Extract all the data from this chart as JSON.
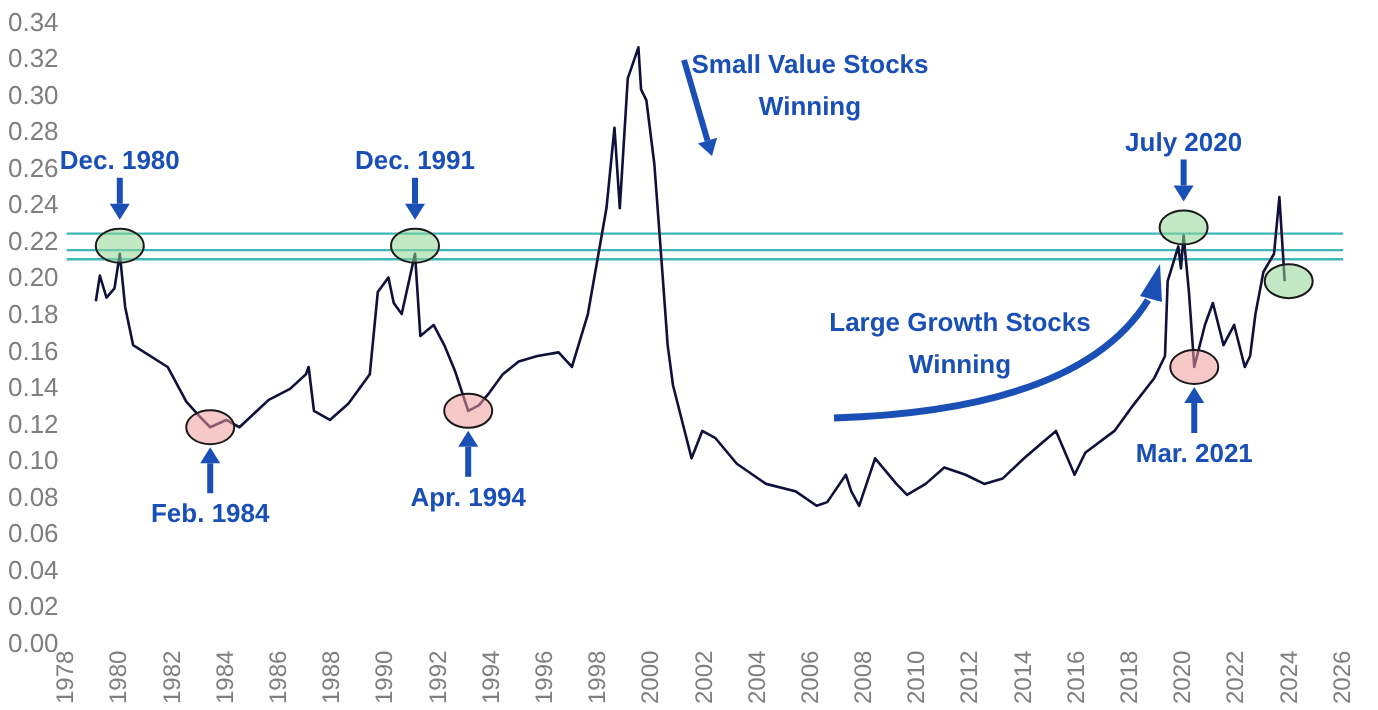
{
  "chart_data": {
    "type": "line",
    "x": [
      1979.1,
      1979.25,
      1979.5,
      1979.8,
      1980.0,
      1980.2,
      1980.5,
      1981.8,
      1982.5,
      1983.0,
      1983.4,
      1984.0,
      1984.5,
      1985.6,
      1986.4,
      1987.0,
      1987.1,
      1987.3,
      1987.9,
      1988.6,
      1989.4,
      1989.7,
      1990.1,
      1990.3,
      1990.6,
      1991.1,
      1991.3,
      1991.8,
      1992.2,
      1992.6,
      1993.1,
      1993.5,
      1993.9,
      1994.4,
      1995.0,
      1995.7,
      1996.5,
      1997.0,
      1997.6,
      1998.3,
      1998.6,
      1998.8,
      1999.1,
      1999.5,
      1999.6,
      1999.8,
      2000.1,
      2000.4,
      2000.6,
      2000.8,
      2001.5,
      2001.9,
      2002.4,
      2003.2,
      2004.3,
      2005.4,
      2006.2,
      2006.6,
      2007.3,
      2007.5,
      2007.8,
      2008.4,
      2009.2,
      2009.6,
      2010.3,
      2011.0,
      2011.8,
      2012.5,
      2013.2,
      2014.0,
      2015.2,
      2015.9,
      2016.3,
      2017.4,
      2018.1,
      2018.9,
      2019.3,
      2019.4,
      2019.8,
      2019.9,
      2020.0,
      2020.2,
      2020.4,
      2020.8,
      2021.1,
      2021.5,
      2021.9,
      2022.3,
      2022.5,
      2022.7,
      2023.0,
      2023.4,
      2023.6,
      2023.8
    ],
    "series": [
      {
        "color": "#10103c",
        "values": [
          0.188,
          0.202,
          0.19,
          0.195,
          0.214,
          0.185,
          0.164,
          0.152,
          0.133,
          0.125,
          0.119,
          0.123,
          0.119,
          0.134,
          0.14,
          0.148,
          0.152,
          0.128,
          0.123,
          0.132,
          0.148,
          0.193,
          0.201,
          0.187,
          0.181,
          0.214,
          0.169,
          0.175,
          0.164,
          0.15,
          0.128,
          0.131,
          0.138,
          0.148,
          0.155,
          0.158,
          0.16,
          0.152,
          0.181,
          0.239,
          0.283,
          0.239,
          0.31,
          0.327,
          0.304,
          0.298,
          0.263,
          0.204,
          0.164,
          0.142,
          0.102,
          0.117,
          0.113,
          0.099,
          0.088,
          0.084,
          0.076,
          0.078,
          0.093,
          0.084,
          0.076,
          0.102,
          0.088,
          0.082,
          0.088,
          0.097,
          0.093,
          0.088,
          0.091,
          0.102,
          0.117,
          0.093,
          0.105,
          0.117,
          0.131,
          0.146,
          0.158,
          0.199,
          0.218,
          0.206,
          0.224,
          0.193,
          0.152,
          0.175,
          0.187,
          0.164,
          0.175,
          0.152,
          0.158,
          0.181,
          0.204,
          0.214,
          0.245,
          0.199
        ]
      }
    ],
    "xlim": [
      1978,
      2026
    ],
    "xticks": [
      1978,
      1980,
      1982,
      1984,
      1986,
      1988,
      1990,
      1992,
      1994,
      1996,
      1998,
      2000,
      2002,
      2004,
      2006,
      2008,
      2010,
      2012,
      2014,
      2016,
      2018,
      2020,
      2022,
      2024,
      2026
    ],
    "ylim": [
      0,
      0.34
    ],
    "yticks": [
      {
        "value": 0,
        "label": "0.00"
      },
      {
        "value": 0.02,
        "label": "0.02"
      },
      {
        "value": 0.04,
        "label": "0.04"
      },
      {
        "value": 0.06,
        "label": "0.06"
      },
      {
        "value": 0.08,
        "label": "0.08"
      },
      {
        "value": 0.1,
        "label": "0.10"
      },
      {
        "value": 0.12,
        "label": "0.12"
      },
      {
        "value": 0.14,
        "label": "0.14"
      },
      {
        "value": 0.16,
        "label": "0.16"
      },
      {
        "value": 0.18,
        "label": "0.18"
      },
      {
        "value": 0.2,
        "label": "0.20"
      },
      {
        "value": 0.22,
        "label": "0.22"
      },
      {
        "value": 0.24,
        "label": "0.24"
      },
      {
        "value": 0.26,
        "label": "0.26"
      },
      {
        "value": 0.28,
        "label": "0.28"
      },
      {
        "value": 0.3,
        "label": "0.30"
      },
      {
        "value": 0.32,
        "label": "0.32"
      },
      {
        "value": 0.34,
        "label": "0.34"
      }
    ],
    "grid": false,
    "legend": false,
    "marker": "none",
    "line_style": "solid",
    "ref_lines": [
      {
        "axis": "y",
        "value": 0.225,
        "color": "#3cb8b8"
      },
      {
        "axis": "y",
        "value": 0.216,
        "color": "#3cb8b8"
      },
      {
        "axis": "y",
        "value": 0.211,
        "color": "#3cb8b8"
      }
    ],
    "annotations": [
      "Dec. 1980",
      "Feb. 1984",
      "Dec. 1991",
      "Apr. 1994",
      "July 2020",
      "Mar. 2021",
      "Small Value Stocks Winning",
      "Large Growth Stocks Winning"
    ]
  }
}
